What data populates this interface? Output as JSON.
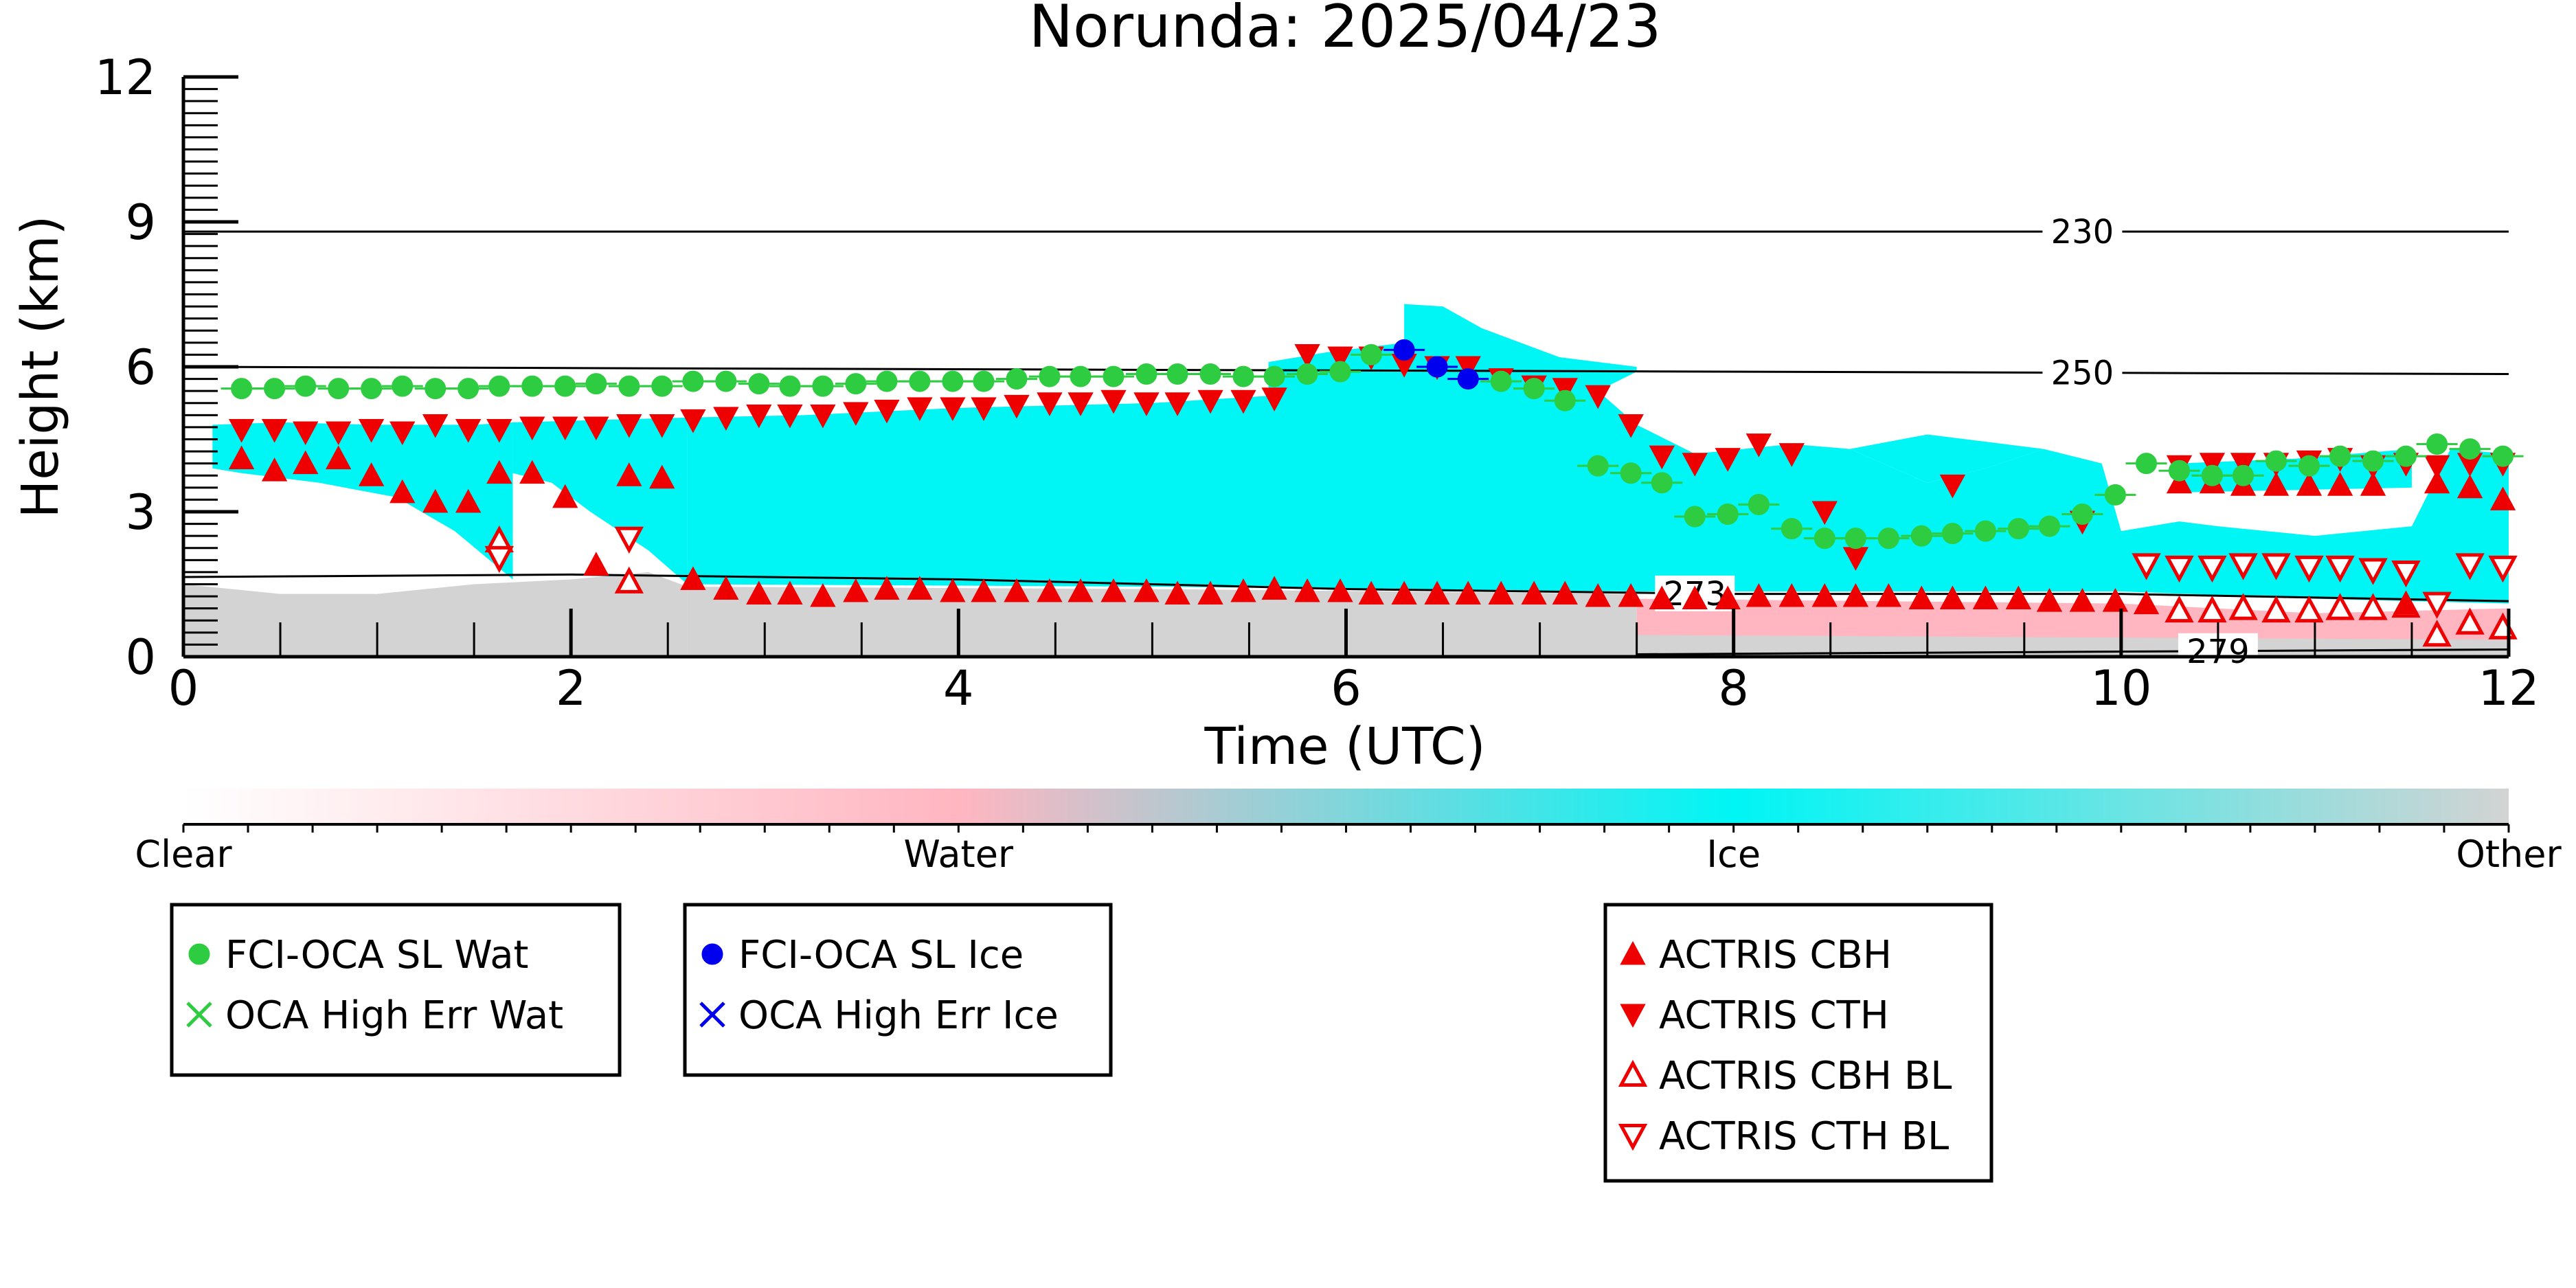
{
  "chart_data": {
    "type": "scatter",
    "title": "Norunda: 2025/04/23",
    "xlabel": "Time (UTC)",
    "ylabel": "Height (km)",
    "xlim": [
      0,
      12
    ],
    "ylim": [
      0,
      12
    ],
    "x_ticks": [
      0,
      2,
      4,
      6,
      8,
      10,
      12
    ],
    "y_ticks": [
      0,
      3,
      6,
      9,
      12
    ],
    "grid": false,
    "legend_position": "below",
    "colorbar": {
      "labels": [
        "Clear",
        "Water",
        "Ice",
        "Other"
      ],
      "colors": [
        "#ffffff",
        "#ffb6c1",
        "#00f5f5",
        "#d3d3d3"
      ]
    },
    "isotherms": [
      {
        "label": "230",
        "x": [
          0,
          12
        ],
        "y": [
          8.8,
          8.8
        ]
      },
      {
        "label": "250",
        "x": [
          0,
          12
        ],
        "y": [
          6.0,
          5.85
        ]
      },
      {
        "label": "273",
        "x": [
          0,
          2,
          4,
          6,
          8,
          10,
          12
        ],
        "y": [
          1.65,
          1.7,
          1.6,
          1.4,
          1.3,
          1.3,
          1.15
        ]
      },
      {
        "label": "279",
        "x": [
          7.5,
          12
        ],
        "y": [
          0.05,
          0.15
        ]
      }
    ],
    "series": [
      {
        "name": "FCI-OCA SL Wat",
        "color": "#2ecc40",
        "marker": "circle",
        "x": [
          0.3,
          0.47,
          0.63,
          0.8,
          0.97,
          1.13,
          1.3,
          1.47,
          1.63,
          1.8,
          1.97,
          2.13,
          2.3,
          2.47,
          2.63,
          2.8,
          2.97,
          3.13,
          3.3,
          3.47,
          3.63,
          3.8,
          3.97,
          4.13,
          4.3,
          4.47,
          4.63,
          4.8,
          4.97,
          5.13,
          5.3,
          5.47,
          5.63,
          5.8,
          5.97,
          6.13,
          6.8,
          6.97,
          7.13,
          7.3,
          7.47,
          7.63,
          7.8,
          7.97,
          8.13,
          8.3,
          8.47,
          8.63,
          8.8,
          8.97,
          9.13,
          9.3,
          9.47,
          9.63,
          9.8,
          9.97,
          10.13,
          10.3,
          10.47,
          10.63,
          10.8,
          10.97,
          11.13,
          11.3,
          11.47,
          11.63,
          11.8,
          11.97
        ],
        "y": [
          5.55,
          5.55,
          5.6,
          5.55,
          5.55,
          5.6,
          5.55,
          5.55,
          5.6,
          5.6,
          5.6,
          5.65,
          5.6,
          5.6,
          5.7,
          5.7,
          5.65,
          5.6,
          5.6,
          5.65,
          5.7,
          5.7,
          5.7,
          5.7,
          5.75,
          5.8,
          5.8,
          5.8,
          5.85,
          5.85,
          5.85,
          5.8,
          5.8,
          5.85,
          5.9,
          6.25,
          5.7,
          5.55,
          5.3,
          3.95,
          3.8,
          3.6,
          2.9,
          2.95,
          3.15,
          2.65,
          2.45,
          2.45,
          2.45,
          2.5,
          2.55,
          2.6,
          2.65,
          2.7,
          2.95,
          3.35,
          4.0,
          3.85,
          3.75,
          3.75,
          4.05,
          3.95,
          4.15,
          4.05,
          4.15,
          4.4,
          4.3,
          4.15
        ]
      },
      {
        "name": "FCI-OCA SL Ice",
        "color": "#0000ee",
        "marker": "circle",
        "x": [
          6.3,
          6.47,
          6.63
        ],
        "y": [
          6.35,
          6.0,
          5.75
        ]
      },
      {
        "name": "OCA High Err Wat",
        "color": "#2ecc40",
        "marker": "x",
        "x": [],
        "y": []
      },
      {
        "name": "OCA High Err Ice",
        "color": "#0000ee",
        "marker": "x",
        "x": [],
        "y": []
      },
      {
        "name": "ACTRIS CBH",
        "color": "#ee0000",
        "marker": "triangle-up",
        "x": [
          0.3,
          0.47,
          0.63,
          0.8,
          0.97,
          1.13,
          1.3,
          1.47,
          1.63,
          1.8,
          1.97,
          2.13,
          2.3,
          2.47,
          2.63,
          2.8,
          2.97,
          3.13,
          3.3,
          3.47,
          3.63,
          3.8,
          3.97,
          4.13,
          4.3,
          4.47,
          4.63,
          4.8,
          4.97,
          5.13,
          5.3,
          5.47,
          5.63,
          5.8,
          5.97,
          6.13,
          6.3,
          6.47,
          6.63,
          6.8,
          6.97,
          7.13,
          7.3,
          7.47,
          7.63,
          7.8,
          7.97,
          8.13,
          8.3,
          8.47,
          8.63,
          8.8,
          8.97,
          9.13,
          9.3,
          9.47,
          9.63,
          9.8,
          9.97,
          10.13,
          10.3,
          10.47,
          10.63,
          10.8,
          10.97,
          11.13,
          11.3,
          11.47,
          11.63,
          11.8,
          11.97
        ],
        "y": [
          4.1,
          3.85,
          4.0,
          4.1,
          3.75,
          3.4,
          3.2,
          3.2,
          3.8,
          3.8,
          3.3,
          1.9,
          3.75,
          3.7,
          1.6,
          1.4,
          1.3,
          1.3,
          1.25,
          1.35,
          1.4,
          1.4,
          1.35,
          1.35,
          1.35,
          1.35,
          1.35,
          1.35,
          1.35,
          1.3,
          1.3,
          1.35,
          1.4,
          1.35,
          1.35,
          1.3,
          1.3,
          1.3,
          1.3,
          1.3,
          1.3,
          1.3,
          1.25,
          1.25,
          1.2,
          1.2,
          1.2,
          1.25,
          1.25,
          1.25,
          1.25,
          1.25,
          1.2,
          1.2,
          1.2,
          1.2,
          1.15,
          1.15,
          1.15,
          1.1,
          3.6,
          3.6,
          3.55,
          3.55,
          3.55,
          3.55,
          3.55,
          1.1,
          3.6,
          3.5,
          3.25
        ]
      },
      {
        "name": "ACTRIS CTH",
        "color": "#ee0000",
        "marker": "triangle-down",
        "x": [
          0.3,
          0.47,
          0.63,
          0.8,
          0.97,
          1.13,
          1.3,
          1.47,
          1.63,
          1.8,
          1.97,
          2.13,
          2.3,
          2.47,
          2.63,
          2.8,
          2.97,
          3.13,
          3.3,
          3.47,
          3.63,
          3.8,
          3.97,
          4.13,
          4.3,
          4.47,
          4.63,
          4.8,
          4.97,
          5.13,
          5.3,
          5.47,
          5.63,
          5.8,
          5.97,
          6.13,
          6.3,
          6.47,
          6.63,
          6.8,
          6.97,
          7.13,
          7.3,
          7.47,
          7.63,
          7.8,
          7.97,
          8.13,
          8.3,
          8.47,
          8.63,
          9.13,
          9.8,
          10.3,
          10.47,
          10.63,
          10.8,
          10.97,
          11.13,
          11.3,
          11.47,
          11.63,
          11.8,
          11.97
        ],
        "y": [
          4.7,
          4.7,
          4.65,
          4.65,
          4.7,
          4.65,
          4.8,
          4.7,
          4.7,
          4.75,
          4.75,
          4.75,
          4.8,
          4.8,
          4.9,
          4.95,
          5.0,
          5.0,
          5.0,
          5.05,
          5.1,
          5.15,
          5.15,
          5.15,
          5.2,
          5.25,
          5.25,
          5.3,
          5.25,
          5.25,
          5.3,
          5.3,
          5.35,
          6.25,
          6.2,
          6.2,
          6.05,
          6.0,
          6.0,
          5.75,
          5.6,
          5.55,
          5.4,
          4.8,
          4.15,
          4.0,
          4.1,
          4.4,
          4.2,
          3.0,
          2.05,
          3.55,
          2.8,
          3.95,
          4.0,
          4.0,
          4.0,
          4.05,
          4.1,
          3.95,
          4.0,
          3.95,
          4.0,
          4.0
        ]
      },
      {
        "name": "ACTRIS CBH BL",
        "color": "#ee0000",
        "marker": "triangle-up-open",
        "x": [
          1.63,
          2.3,
          10.3,
          10.47,
          10.63,
          10.8,
          10.97,
          11.13,
          11.3,
          11.47,
          11.63,
          11.8,
          11.97
        ],
        "y": [
          2.4,
          1.55,
          0.95,
          0.95,
          1.0,
          0.95,
          0.95,
          1.0,
          1.0,
          1.05,
          0.45,
          0.7,
          0.6
        ]
      },
      {
        "name": "ACTRIS CTH BL",
        "color": "#ee0000",
        "marker": "triangle-down-open",
        "x": [
          1.63,
          2.3,
          10.13,
          10.3,
          10.47,
          10.63,
          10.8,
          10.97,
          11.13,
          11.3,
          11.47,
          11.63,
          11.8,
          11.97
        ],
        "y": [
          2.05,
          2.45,
          1.9,
          1.85,
          1.85,
          1.9,
          1.9,
          1.85,
          1.85,
          1.8,
          1.75,
          1.1,
          1.9,
          1.85
        ]
      }
    ]
  }
}
